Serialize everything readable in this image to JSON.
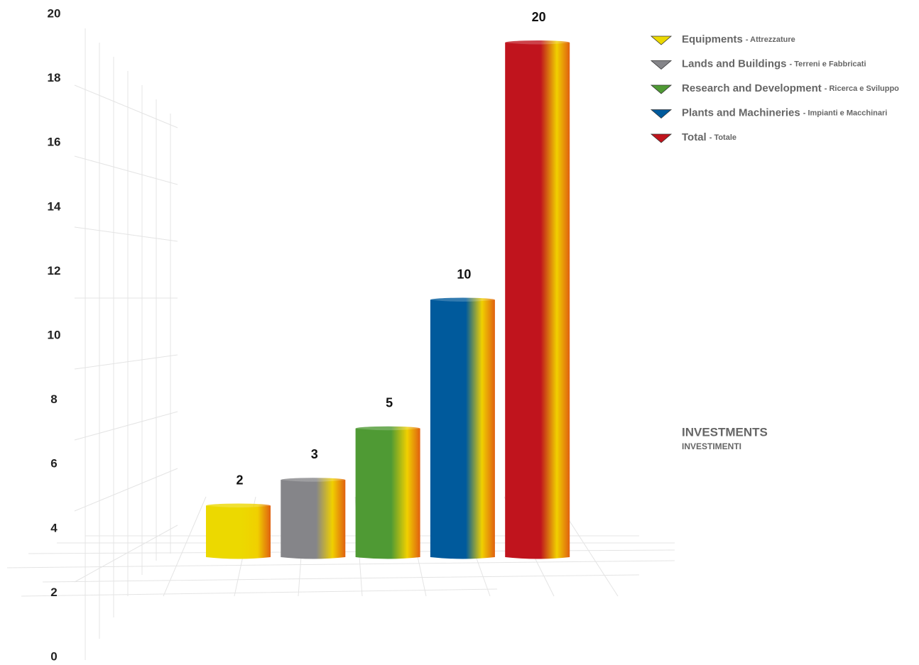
{
  "chart_data": {
    "type": "bar",
    "title": "INVESTMENTS",
    "subtitle": "INVESTIMENTI",
    "categories": [
      {
        "name": "Equipments",
        "sub": "- Attrezzature"
      },
      {
        "name": "Lands and Buildings",
        "sub": "- Terreni e Fabbricati"
      },
      {
        "name": "Research and Development",
        "sub": "- Ricerca e Sviluppo"
      },
      {
        "name": "Plants and Machineries",
        "sub": "- Impianti e Macchinari"
      },
      {
        "name": "Total",
        "sub": "- Totale"
      }
    ],
    "values": [
      2,
      3,
      5,
      10,
      20
    ],
    "colors": [
      "#ecd900",
      "#858589",
      "#4f9a34",
      "#005a9c",
      "#c0141d"
    ],
    "ylim": [
      0,
      20
    ],
    "yticks": [
      0,
      2,
      4,
      6,
      8,
      10,
      12,
      14,
      16,
      18,
      20
    ],
    "legend": "top-right"
  }
}
